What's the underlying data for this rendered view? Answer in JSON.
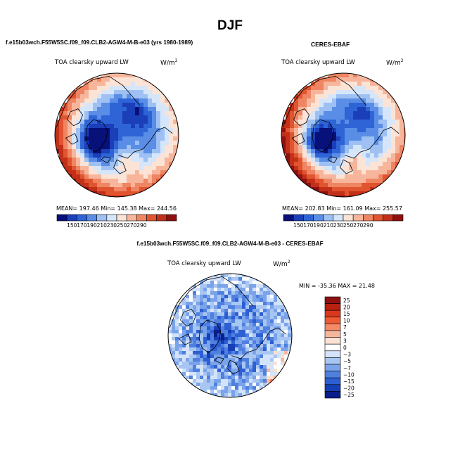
{
  "page_title": "DJF",
  "colors": {
    "seq_bar": [
      "#08107a",
      "#1a3fb8",
      "#2f64d6",
      "#5a8de6",
      "#9ec0f3",
      "#d6e6fa",
      "#fbe3d6",
      "#f7b69c",
      "#ef8563",
      "#e0542f",
      "#c2301a",
      "#8f1010"
    ],
    "diff_bar": [
      "#8f1010",
      "#b8200f",
      "#d9381e",
      "#ee5a34",
      "#f48a66",
      "#f7b69c",
      "#fbe1d3",
      "#ffffff",
      "#d3e3fa",
      "#a8c6f2",
      "#7aa3ea",
      "#4f80e0",
      "#2d5fd3",
      "#173fb5",
      "#0a1e8a"
    ]
  },
  "chart_data": [
    {
      "type": "heatmap",
      "projection": "north-polar-stereographic",
      "heading": "f.e15b03wch.F55W5SC.f09_f09.CLB2-AGW4-M-B-e03 (yrs 1980-1989)",
      "title": "TOA clearsky upward LW",
      "units_prefix": "W/m",
      "units_exp": "2",
      "stats_text": "MEAN= 197.46  Min= 145.38  Max= 244.56",
      "stats": {
        "mean": 197.46,
        "min": 145.38,
        "max": 244.56
      },
      "colorbar_ticks": [
        "150",
        "170",
        "190",
        "210",
        "230",
        "250",
        "270",
        "290"
      ]
    },
    {
      "type": "heatmap",
      "projection": "north-polar-stereographic",
      "heading": "CERES-EBAF",
      "title": "TOA clearsky upward LW",
      "units_prefix": "W/m",
      "units_exp": "2",
      "stats_text": "MEAN= 202.83  Min= 161.09  Max= 255.57",
      "stats": {
        "mean": 202.83,
        "min": 161.09,
        "max": 255.57
      },
      "colorbar_ticks": [
        "150",
        "170",
        "190",
        "210",
        "230",
        "250",
        "270",
        "290"
      ]
    },
    {
      "type": "heatmap",
      "projection": "north-polar-stereographic",
      "heading": "f.e15b03wch.F55W5SC.f09_f09.CLB2-AGW4-M-B-e03 - CERES-EBAF",
      "title": "TOA clearsky upward LW",
      "units_prefix": "W/m",
      "units_exp": "2",
      "stats_text": "MIN = -35.36  MAX =  21.48",
      "stats": {
        "min": -35.36,
        "max": 21.48
      },
      "colorbar_ticks": [
        "25",
        "20",
        "15",
        "10",
        "7",
        "5",
        "3",
        "0",
        "−3",
        "−5",
        "−7",
        "−10",
        "−15",
        "−20",
        "−25"
      ]
    }
  ]
}
